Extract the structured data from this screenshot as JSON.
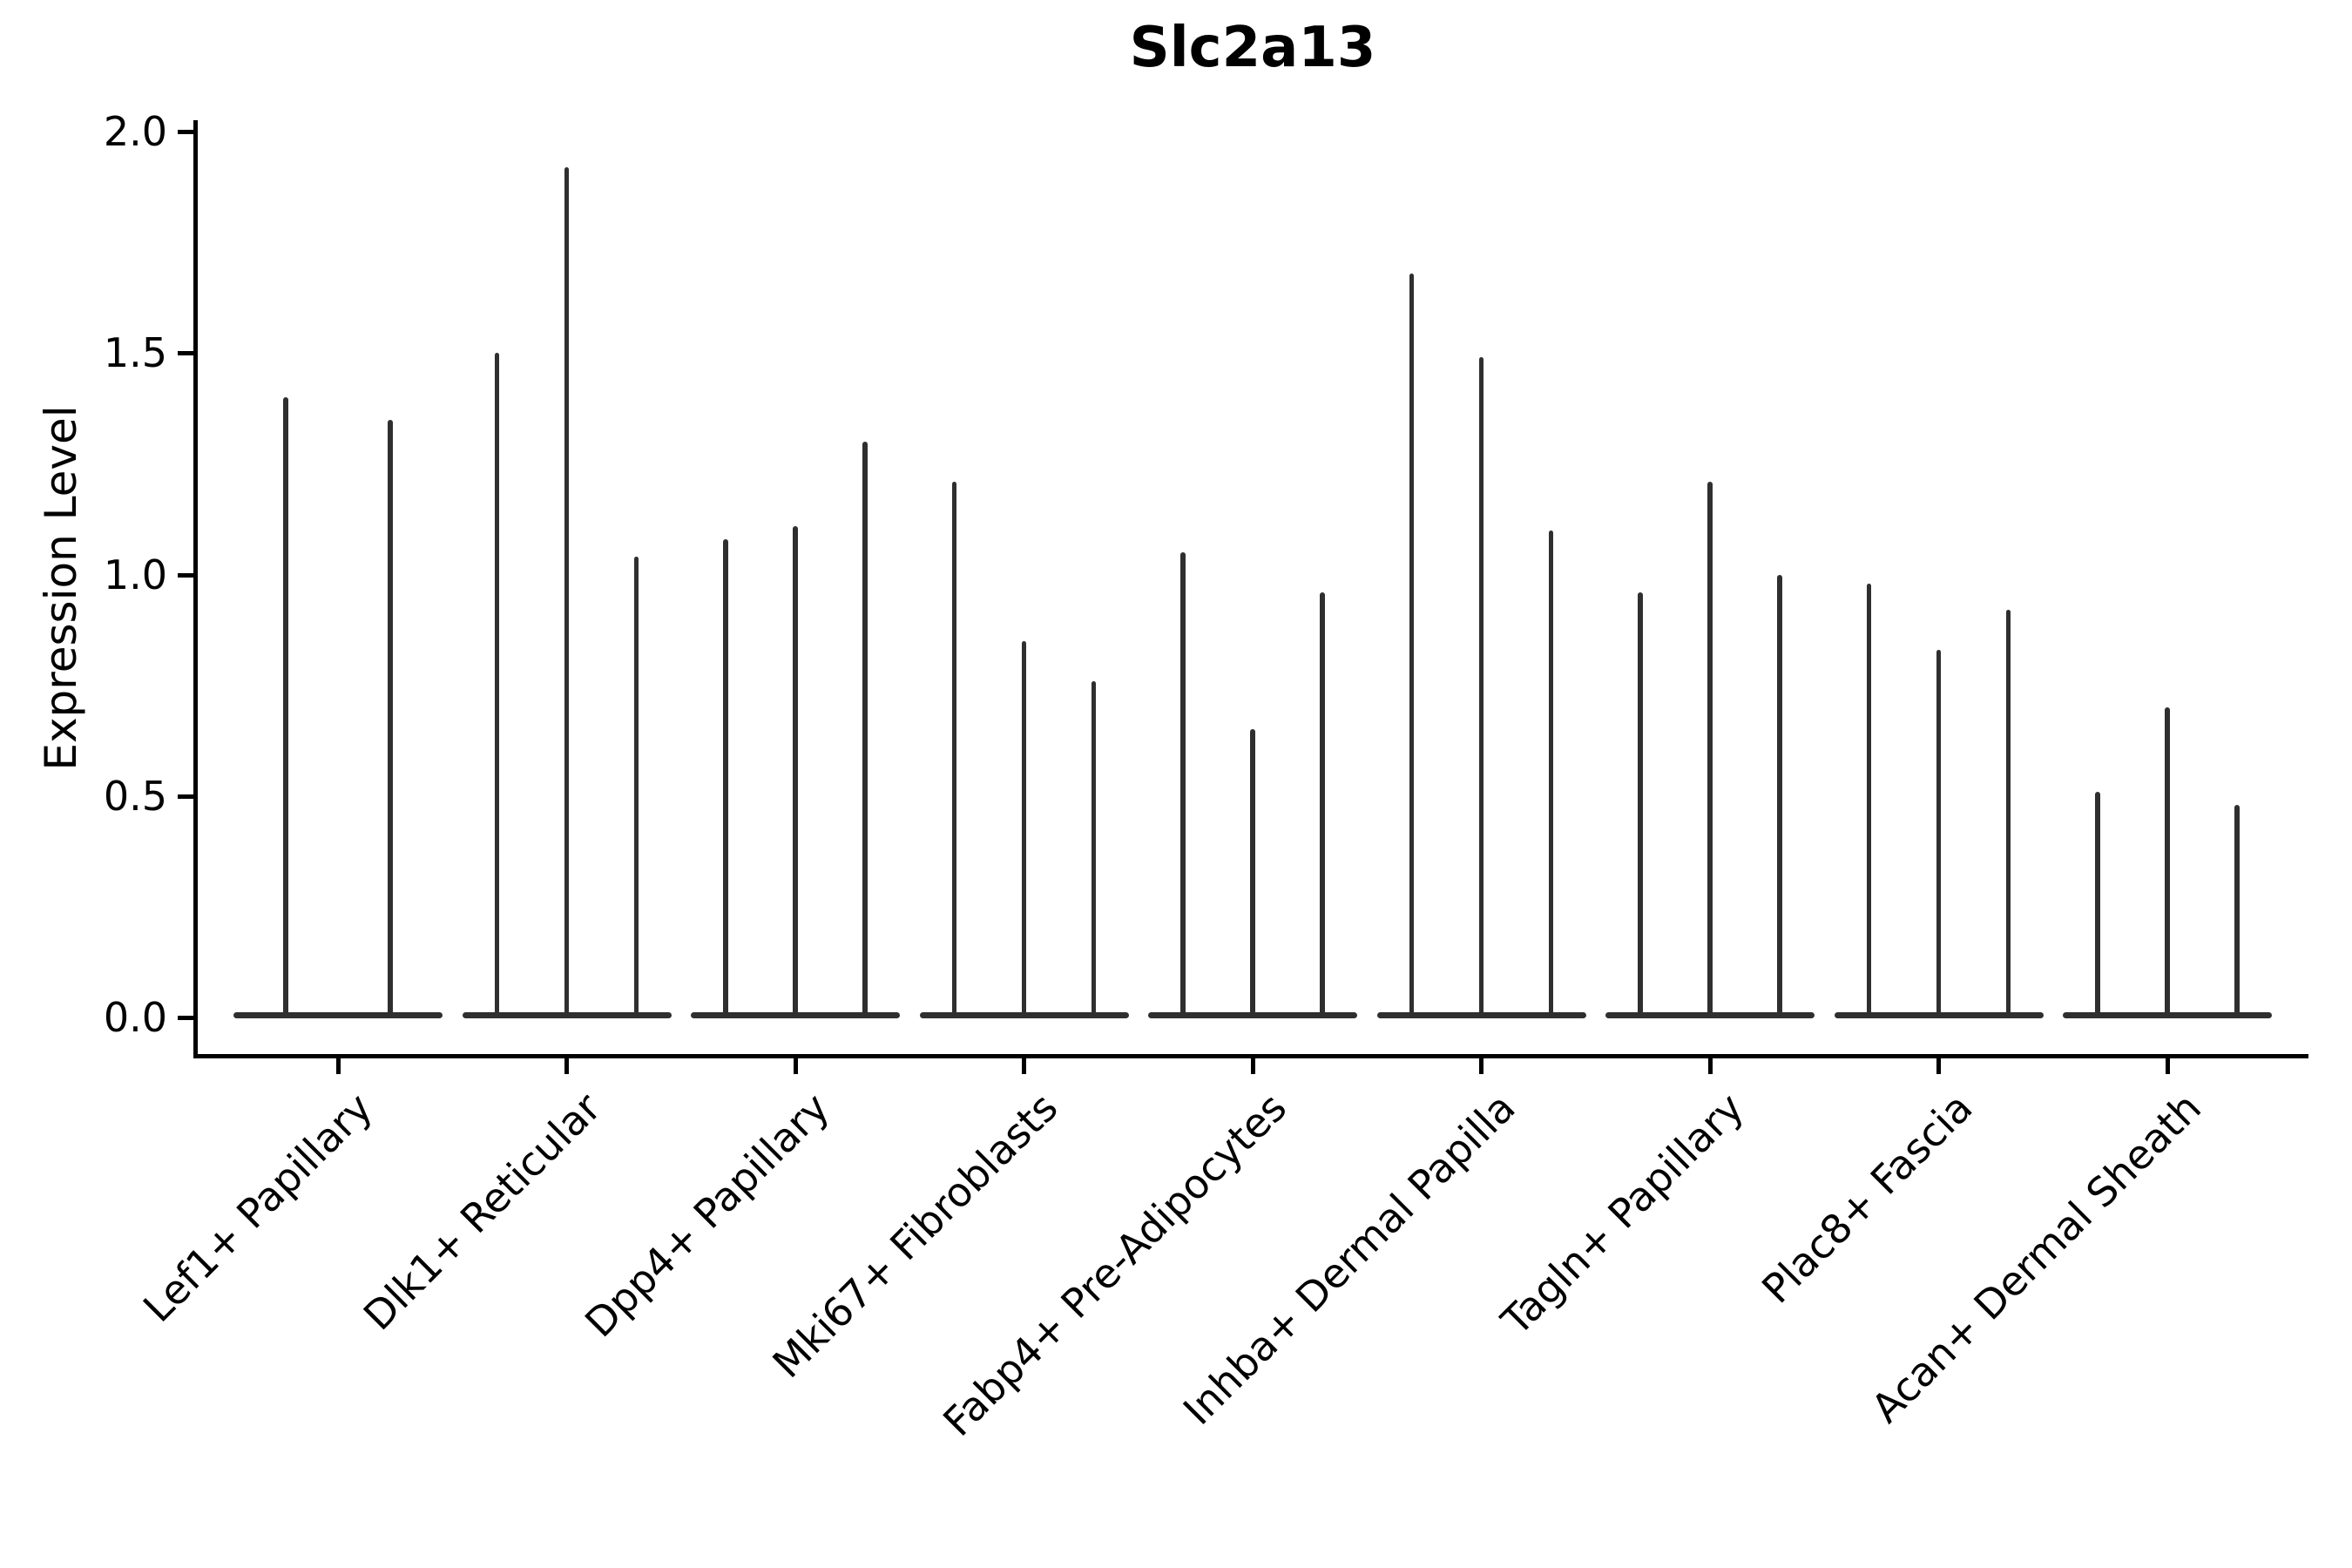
{
  "title": "Slc2a13",
  "ylabel": "Expression Level",
  "yticks": [
    {
      "label": "0.0",
      "value": 0.0
    },
    {
      "label": "0.5",
      "value": 0.5
    },
    {
      "label": "1.0",
      "value": 1.0
    },
    {
      "label": "1.5",
      "value": 1.5
    },
    {
      "label": "2.0",
      "value": 2.0
    }
  ],
  "chart_data": {
    "type": "violin",
    "title": "Slc2a13",
    "xlabel": "",
    "ylabel": "Expression Level",
    "ylim": [
      0,
      2.02
    ],
    "grid": false,
    "legend": "none",
    "line_color": "#2f2f2f",
    "axis_color": "#000000",
    "background_color": "#ffffff",
    "categories": [
      "Lef1+ Papillary",
      "Dlk1+ Reticular",
      "Dpp4+ Papillary",
      "Mki67+ Fibroblasts",
      "Fabp4+ Pre-Adipocytes",
      "Inhba+ Dermal Papilla",
      "Tagln+ Papillary",
      "Plac8+ Fascia",
      "Acan+ Dermal Sheath"
    ],
    "groups": [
      {
        "category": "Lef1+ Papillary",
        "violin_max_heights": [
          1.4,
          1.35
        ]
      },
      {
        "category": "Dlk1+ Reticular",
        "violin_max_heights": [
          1.5,
          1.92,
          1.04
        ]
      },
      {
        "category": "Dpp4+ Papillary",
        "violin_max_heights": [
          1.08,
          1.11,
          1.3
        ]
      },
      {
        "category": "Mki67+ Fibroblasts",
        "violin_max_heights": [
          1.21,
          0.85,
          0.76
        ]
      },
      {
        "category": "Fabp4+ Pre-Adipocytes",
        "violin_max_heights": [
          1.05,
          0.65,
          0.96
        ]
      },
      {
        "category": "Inhba+ Dermal Papilla",
        "violin_max_heights": [
          1.68,
          1.49,
          1.1
        ]
      },
      {
        "category": "Tagln+ Papillary",
        "violin_max_heights": [
          0.96,
          1.21,
          1.0
        ]
      },
      {
        "category": "Plac8+ Fascia",
        "violin_max_heights": [
          0.98,
          0.83,
          0.92
        ]
      },
      {
        "category": "Acan+ Dermal Sheath",
        "violin_max_heights": [
          0.51,
          0.7,
          0.48
        ]
      }
    ]
  }
}
